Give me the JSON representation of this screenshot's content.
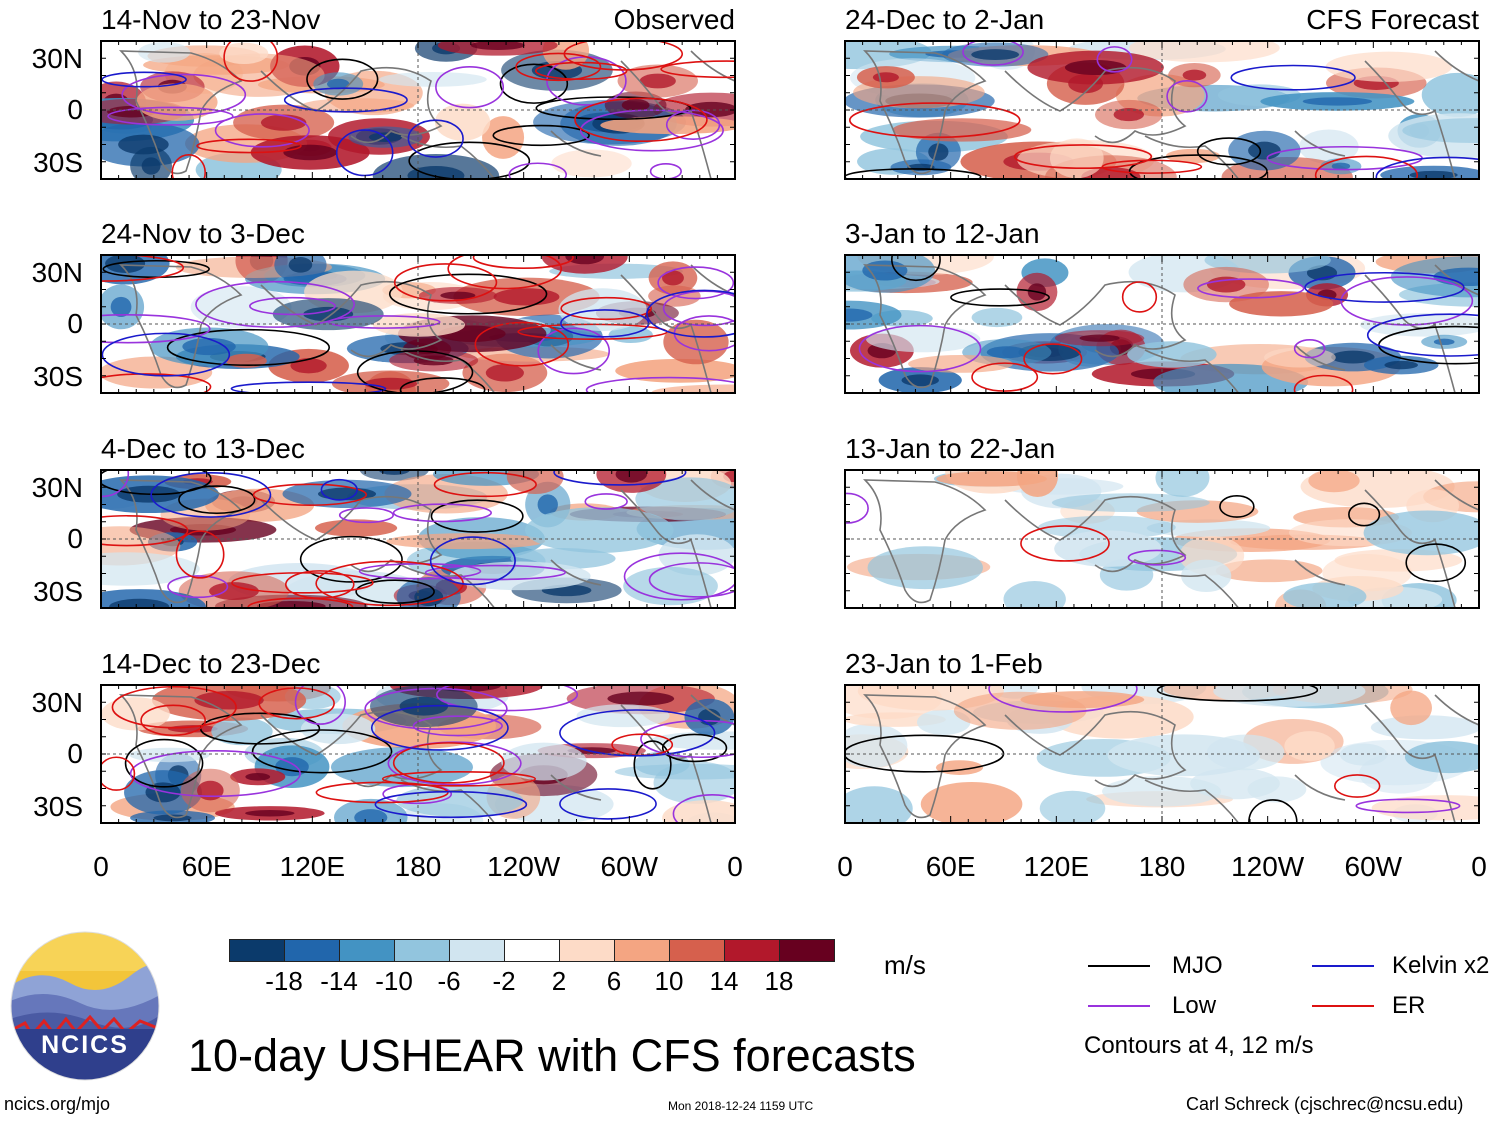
{
  "chart_data": {
    "type": "heatmap",
    "title": "10-day USHEAR with CFS forecasts",
    "variable": "USHEAR",
    "units": "m/s",
    "columns": [
      {
        "name": "observed",
        "tag": "Observed"
      },
      {
        "name": "forecast",
        "tag": "CFS Forecast"
      }
    ],
    "panels": [
      {
        "column": "observed",
        "label": "14-Nov to 23-Nov",
        "seed": 3
      },
      {
        "column": "observed",
        "label": "24-Nov to 3-Dec",
        "seed": 11
      },
      {
        "column": "observed",
        "label": "4-Dec to 13-Dec",
        "seed": 19
      },
      {
        "column": "observed",
        "label": "14-Dec to 23-Dec",
        "seed": 27
      },
      {
        "column": "forecast",
        "label": "24-Dec to 2-Jan",
        "seed": 35
      },
      {
        "column": "forecast",
        "label": "3-Jan to 12-Jan",
        "seed": 43
      },
      {
        "column": "forecast",
        "label": "13-Jan to 22-Jan",
        "seed": 51
      },
      {
        "column": "forecast",
        "label": "23-Jan to 1-Feb",
        "seed": 59
      }
    ],
    "x_ticks": [
      "0",
      "60E",
      "120E",
      "180",
      "120W",
      "60W",
      "0"
    ],
    "y_ticks": [
      "30N",
      "0",
      "30S"
    ],
    "colorbar": {
      "levels": [
        "-18",
        "-14",
        "-10",
        "-6",
        "-2",
        "2",
        "6",
        "10",
        "14",
        "18"
      ],
      "colors": [
        "#0b3a6b",
        "#2166ac",
        "#4393c3",
        "#92c5de",
        "#d1e5f0",
        "#ffffff",
        "#fddbc7",
        "#f4a582",
        "#d6604d",
        "#b2182b",
        "#67001f"
      ]
    },
    "legend": [
      {
        "name": "mjo",
        "label": "MJO",
        "color": "#000000"
      },
      {
        "name": "kelvin",
        "label": "Kelvin x2",
        "color": "#1a1acc"
      },
      {
        "name": "low",
        "label": "Low",
        "color": "#9933dd"
      },
      {
        "name": "er",
        "label": "ER",
        "color": "#dd1111"
      }
    ],
    "contour_note": "Contours at 4, 12 m/s"
  },
  "footer": {
    "logo_text": "NCICS",
    "url": "ncics.org/mjo",
    "timestamp": "Mon 2018-12-24 1159 UTC",
    "credit": "Carl Schreck (cjschrec@ncsu.edu)"
  },
  "colors": {
    "land": "#777777",
    "frame": "#000000"
  }
}
